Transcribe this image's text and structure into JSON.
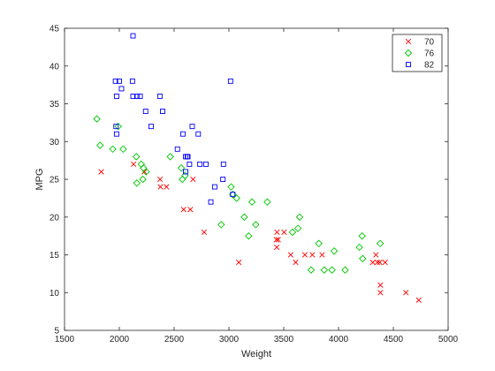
{
  "chart_data": {
    "type": "scatter",
    "title": "",
    "xlabel": "Weight",
    "ylabel": "MPG",
    "xlim": [
      1500,
      5000
    ],
    "ylim": [
      5,
      45
    ],
    "xticks": [
      1500,
      2000,
      2500,
      3000,
      3500,
      4000,
      4500,
      5000
    ],
    "yticks": [
      5,
      10,
      15,
      20,
      25,
      30,
      35,
      40,
      45
    ],
    "grid": false,
    "legend_position": "top-right",
    "series": [
      {
        "name": "70",
        "marker": "x",
        "color": "#ff0000",
        "points": [
          [
            1835,
            26
          ],
          [
            2130,
            27
          ],
          [
            2228,
            26
          ],
          [
            2372,
            25
          ],
          [
            2375,
            24
          ],
          [
            2430,
            24
          ],
          [
            2587,
            21
          ],
          [
            2648,
            21
          ],
          [
            2672,
            25
          ],
          [
            2774,
            18
          ],
          [
            3090,
            14
          ],
          [
            3433,
            17
          ],
          [
            3436,
            16
          ],
          [
            3439,
            18
          ],
          [
            3449,
            17
          ],
          [
            3504,
            18
          ],
          [
            3563,
            15
          ],
          [
            3609,
            14
          ],
          [
            3693,
            15
          ],
          [
            3761,
            15
          ],
          [
            3850,
            15
          ],
          [
            4312,
            14
          ],
          [
            4341,
            15
          ],
          [
            4354,
            14
          ],
          [
            4376,
            14
          ],
          [
            4382,
            10
          ],
          [
            4425,
            14
          ],
          [
            4615,
            10
          ],
          [
            4732,
            9
          ],
          [
            4382,
            11
          ]
        ]
      },
      {
        "name": "76",
        "marker": "diamond",
        "color": "#00c800",
        "points": [
          [
            1795,
            33
          ],
          [
            1825,
            29.5
          ],
          [
            1940,
            29
          ],
          [
            1990,
            32
          ],
          [
            2035,
            29
          ],
          [
            2155,
            28
          ],
          [
            2160,
            24.5
          ],
          [
            2200,
            27
          ],
          [
            2215,
            25
          ],
          [
            2220,
            26.5
          ],
          [
            2245,
            26
          ],
          [
            2465,
            28
          ],
          [
            2565,
            26.5
          ],
          [
            2575,
            25
          ],
          [
            2600,
            25.5
          ],
          [
            2930,
            19
          ],
          [
            3020,
            24
          ],
          [
            3035,
            23
          ],
          [
            3070,
            22.5
          ],
          [
            3140,
            20
          ],
          [
            3180,
            17.5
          ],
          [
            3210,
            22
          ],
          [
            3245,
            19
          ],
          [
            3350,
            22
          ],
          [
            3580,
            18
          ],
          [
            3630,
            18.5
          ],
          [
            3645,
            20
          ],
          [
            3750,
            13
          ],
          [
            3820,
            16.5
          ],
          [
            3870,
            13
          ],
          [
            3940,
            13
          ],
          [
            3960,
            15.5
          ],
          [
            4060,
            13
          ],
          [
            4190,
            16
          ],
          [
            4220,
            14.5
          ],
          [
            4215,
            17.5
          ],
          [
            4380,
            16.5
          ]
        ]
      },
      {
        "name": "82",
        "marker": "square",
        "color": "#0000ff",
        "points": [
          [
            1965,
            38
          ],
          [
            1975,
            36
          ],
          [
            1970,
            32
          ],
          [
            1975,
            31
          ],
          [
            2000,
            38
          ],
          [
            2020,
            37
          ],
          [
            2120,
            38
          ],
          [
            2125,
            44
          ],
          [
            2125,
            36
          ],
          [
            2160,
            36
          ],
          [
            2190,
            36
          ],
          [
            2240,
            34
          ],
          [
            2290,
            32
          ],
          [
            2370,
            36
          ],
          [
            2395,
            34
          ],
          [
            2530,
            29
          ],
          [
            2580,
            31
          ],
          [
            2620,
            28
          ],
          [
            2625,
            28
          ],
          [
            2640,
            27
          ],
          [
            2665,
            32
          ],
          [
            2720,
            31
          ],
          [
            2735,
            27
          ],
          [
            2790,
            27
          ],
          [
            2835,
            22
          ],
          [
            2870,
            24
          ],
          [
            2950,
            27
          ],
          [
            2945,
            25
          ],
          [
            3015,
            38
          ],
          [
            3035,
            23
          ],
          [
            2605,
            26
          ],
          [
            2605,
            28
          ]
        ]
      }
    ]
  }
}
